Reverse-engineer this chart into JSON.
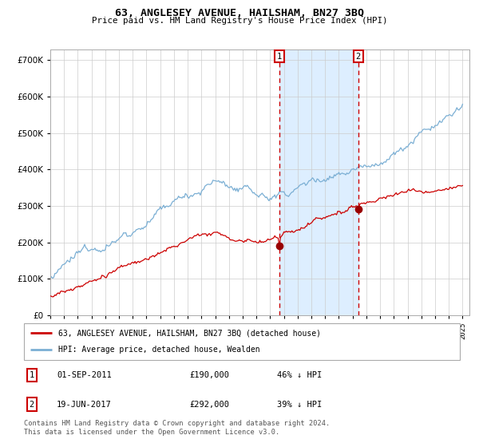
{
  "title": "63, ANGLESEY AVENUE, HAILSHAM, BN27 3BQ",
  "subtitle": "Price paid vs. HM Land Registry's House Price Index (HPI)",
  "red_label": "63, ANGLESEY AVENUE, HAILSHAM, BN27 3BQ (detached house)",
  "blue_label": "HPI: Average price, detached house, Wealden",
  "transaction1_date": "01-SEP-2011",
  "transaction1_price": 190000,
  "transaction1_pct": "46% ↓ HPI",
  "transaction2_date": "19-JUN-2017",
  "transaction2_price": 292000,
  "transaction2_pct": "39% ↓ HPI",
  "footer": "Contains HM Land Registry data © Crown copyright and database right 2024.\nThis data is licensed under the Open Government Licence v3.0.",
  "red_color": "#cc0000",
  "blue_color": "#7bafd4",
  "shade_color": "#ddeeff",
  "vline_color": "#cc0000",
  "grid_color": "#cccccc",
  "background_color": "#ffffff",
  "ylim": [
    0,
    730000
  ],
  "yticks": [
    0,
    100000,
    200000,
    300000,
    400000,
    500000,
    600000,
    700000
  ],
  "start_year": 1995,
  "end_year": 2025
}
